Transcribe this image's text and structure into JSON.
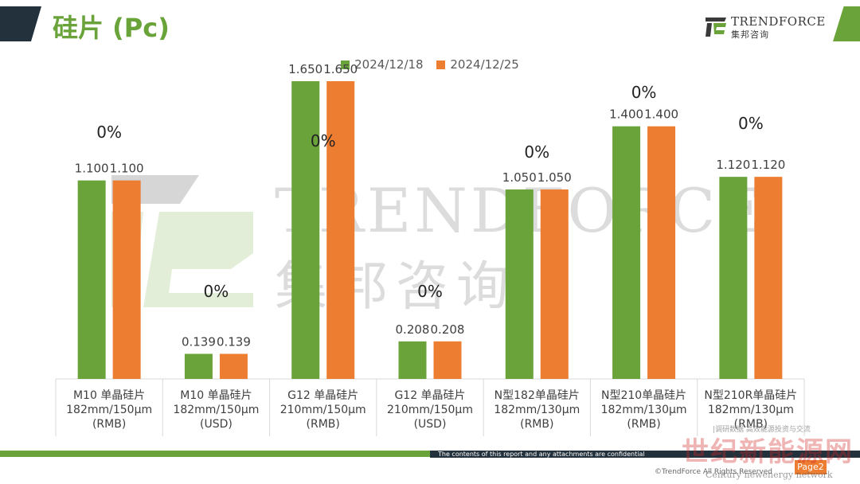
{
  "header": {
    "title": "硅片 (Pc)",
    "brand_name": "TRENDFORCE",
    "brand_cn": "集邦咨询"
  },
  "watermark": {
    "name": "TRENDFORCE",
    "cn": "集邦咨询"
  },
  "colors": {
    "series_1": "#6aa33a",
    "series_2": "#ed7d31",
    "brand_dark": "#22313c"
  },
  "footer": {
    "note": "The contents of this report and any attachments are confidential",
    "copyright": "©TrendForce All Rights Reserved",
    "page": "Page2"
  },
  "stamp": {
    "text": "世纪新能源网",
    "en": "Century newenergy network",
    "sub": "|调研数据 高效能源投资与交流"
  },
  "chart_data": {
    "type": "bar",
    "title": "",
    "xlabel": "",
    "ylabel": "",
    "ylim": [
      0,
      1.8
    ],
    "grid": false,
    "legend_position": "top-center",
    "categories": [
      [
        "M10 单晶硅片",
        "182mm/150μm",
        "(RMB)"
      ],
      [
        "M10 单晶硅片",
        "182mm/150μm",
        "(USD)"
      ],
      [
        "G12 单晶硅片",
        "210mm/150μm",
        "(RMB)"
      ],
      [
        "G12 单晶硅片",
        "210mm/150μm",
        "(USD)"
      ],
      [
        "N型182单晶硅片",
        "182mm/130μm",
        "(RMB)"
      ],
      [
        "N型210单晶硅片",
        "182mm/130μm",
        "(RMB)"
      ],
      [
        "N型210R单晶硅片",
        "182mm/130μm",
        "(RMB)"
      ]
    ],
    "series": [
      {
        "name": "2024/12/18",
        "values": [
          1.1,
          0.139,
          1.65,
          0.208,
          1.05,
          1.4,
          1.12
        ],
        "labels": [
          "1.100",
          "0.139",
          "1.650",
          "0.208",
          "1.050",
          "1.400",
          "1.120"
        ]
      },
      {
        "name": "2024/12/25",
        "values": [
          1.1,
          0.139,
          1.65,
          0.208,
          1.05,
          1.4,
          1.12
        ],
        "labels": [
          "1.100",
          "0.139",
          "1.650",
          "0.208",
          "1.050",
          "1.400",
          "1.120"
        ]
      }
    ],
    "changes": [
      "0%",
      "0%",
      "0%",
      "0%",
      "0%",
      "0%",
      "0%"
    ]
  }
}
